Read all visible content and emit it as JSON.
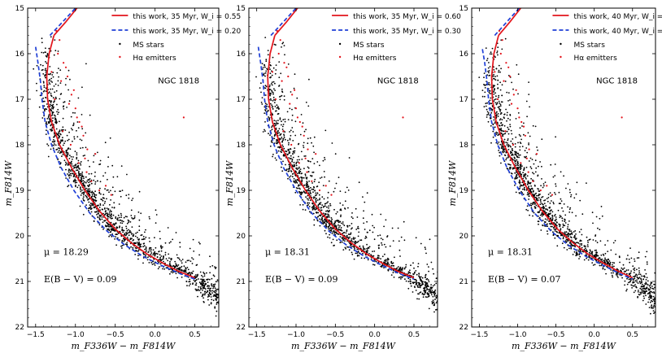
{
  "chart_data": [
    {
      "type": "scatter",
      "panel": "left",
      "cluster": "NGC 1818",
      "xlabel": "m_F336W − m_F814W",
      "ylabel": "m_F814W",
      "xlim": [
        -1.6,
        0.8
      ],
      "ylim": [
        22,
        15
      ],
      "xticks": [
        -1.5,
        -1.0,
        -0.5,
        0.0,
        0.5
      ],
      "xtick_labels": [
        "−1.5",
        "−1.0",
        "−0.5",
        "0.0",
        "0.5"
      ],
      "yticks": [
        15,
        16,
        17,
        18,
        19,
        20,
        21,
        22
      ],
      "ytick_labels": [
        "15",
        "16",
        "17",
        "18",
        "19",
        "20",
        "21",
        "22"
      ],
      "legend_position": "top-right",
      "legend": [
        {
          "label": "this work, 35 Myr, W_i = 0.55",
          "color": "#e3141b",
          "style": "solid"
        },
        {
          "label": "this work, 35 Myr, W_i = 0.20",
          "color": "#1f3fd6",
          "style": "dashed"
        },
        {
          "label": "MS stars",
          "color": "#000000",
          "style": "dot"
        },
        {
          "label": "Hα emitters",
          "color": "#e3141b",
          "style": "dot"
        }
      ],
      "annotations": {
        "cluster_label": "NGC 1818",
        "mu": "μ = 18.29",
        "ebv": "E(B − V) = 0.09"
      },
      "series": [
        {
          "name": "this work, 35 Myr, W_i = 0.55",
          "type": "line",
          "color": "#e3141b",
          "x": [
            -1.27,
            -1.33,
            -1.36,
            -1.35,
            -1.3,
            -1.2,
            -1.05,
            -0.88,
            -0.7,
            -0.5,
            -0.3,
            -0.1,
            0.1,
            0.3,
            0.5
          ],
          "y": [
            15.6,
            16.0,
            16.5,
            17.0,
            17.5,
            18.0,
            18.5,
            19.0,
            19.45,
            19.85,
            20.15,
            20.4,
            20.6,
            20.78,
            20.92
          ]
        },
        {
          "name": "this work, 35 Myr, W_i = 0.20",
          "type": "line",
          "color": "#1f3fd6",
          "x": [
            -1.5,
            -1.47,
            -1.44,
            -1.42,
            -1.38,
            -1.3,
            -1.18,
            -1.02,
            -0.82,
            -0.6,
            -0.38,
            -0.15,
            0.08,
            0.3,
            0.5
          ],
          "y": [
            15.85,
            16.2,
            16.6,
            17.0,
            17.5,
            18.0,
            18.5,
            19.0,
            19.5,
            19.9,
            20.2,
            20.45,
            20.65,
            20.82,
            20.95
          ]
        },
        {
          "name": "this work, 35 Myr, W_i = 0.55 (bright extension)",
          "type": "line",
          "color": "#e3141b",
          "x": [
            -1.27,
            -1.12,
            -0.98
          ],
          "y": [
            15.6,
            15.3,
            15.0
          ]
        },
        {
          "name": "this work, 35 Myr, W_i = 0.20 (bright extension)",
          "type": "line",
          "color": "#1f3fd6",
          "x": [
            -1.32,
            -1.16,
            -1.0
          ],
          "y": [
            15.6,
            15.3,
            15.0
          ]
        },
        {
          "name": "Hα emitters",
          "type": "scatter",
          "color": "#e3141b",
          "x": [
            -1.24,
            -1.2,
            -1.15,
            -1.1,
            -1.05,
            -1.0,
            -0.95,
            -0.9,
            -0.85,
            -1.22,
            -1.18,
            -1.12,
            -1.08,
            -1.02,
            -0.98,
            -0.92,
            -0.88,
            -1.3,
            -1.26,
            -1.16,
            -1.06,
            -0.96,
            -0.86,
            -0.8,
            -0.75,
            -0.7,
            -0.62,
            -0.55,
            0.36
          ],
          "y": [
            15.5,
            15.7,
            16.2,
            16.5,
            16.9,
            17.2,
            17.5,
            17.8,
            18.1,
            16.0,
            16.6,
            16.3,
            17.1,
            16.8,
            17.4,
            17.6,
            18.3,
            16.4,
            17.0,
            17.7,
            18.0,
            18.4,
            18.6,
            18.8,
            18.2,
            19.0,
            18.9,
            19.1,
            17.4
          ]
        },
        {
          "name": "MS stars",
          "type": "scatter",
          "color": "#000000",
          "note": "dense main-sequence cloud (~2000 stars) following the isochrones; generated procedurally in the rendering script around the red isochrone",
          "x": [],
          "y": []
        }
      ]
    },
    {
      "type": "scatter",
      "panel": "middle",
      "cluster": "NGC 1818",
      "xlabel": "m_F336W − m_F814W",
      "ylabel": "m_F814W",
      "xlim": [
        -1.6,
        0.8
      ],
      "ylim": [
        22,
        15
      ],
      "xticks": [
        -1.5,
        -1.0,
        -0.5,
        0.0,
        0.5
      ],
      "xtick_labels": [
        "−1.5",
        "−1.0",
        "−0.5",
        "0.0",
        "0.5"
      ],
      "yticks": [
        15,
        16,
        17,
        18,
        19,
        20,
        21,
        22
      ],
      "ytick_labels": [
        "15",
        "16",
        "17",
        "18",
        "19",
        "20",
        "21",
        "22"
      ],
      "legend_position": "top-right",
      "legend": [
        {
          "label": "this work, 35 Myr, W_i = 0.60",
          "color": "#e3141b",
          "style": "solid"
        },
        {
          "label": "this work, 35 Myr, W_i = 0.30",
          "color": "#1f3fd6",
          "style": "dashed"
        },
        {
          "label": "MS stars",
          "color": "#000000",
          "style": "dot"
        },
        {
          "label": "Hα emitters",
          "color": "#e3141b",
          "style": "dot"
        }
      ],
      "annotations": {
        "cluster_label": "NGC 1818",
        "mu": "μ = 18.31",
        "ebv": "E(B − V) = 0.09"
      },
      "series": [
        {
          "name": "this work, 35 Myr, W_i = 0.60",
          "type": "line",
          "color": "#e3141b",
          "x": [
            -1.27,
            -1.33,
            -1.36,
            -1.35,
            -1.3,
            -1.2,
            -1.05,
            -0.88,
            -0.7,
            -0.5,
            -0.3,
            -0.1,
            0.1,
            0.3,
            0.5
          ],
          "y": [
            15.6,
            16.0,
            16.5,
            17.0,
            17.5,
            18.0,
            18.5,
            19.0,
            19.45,
            19.85,
            20.15,
            20.4,
            20.6,
            20.78,
            20.92
          ]
        },
        {
          "name": "this work, 35 Myr, W_i = 0.30",
          "type": "line",
          "color": "#1f3fd6",
          "x": [
            -1.48,
            -1.45,
            -1.42,
            -1.4,
            -1.36,
            -1.28,
            -1.16,
            -1.0,
            -0.8,
            -0.58,
            -0.36,
            -0.13,
            0.1,
            0.3,
            0.5
          ],
          "y": [
            15.85,
            16.2,
            16.6,
            17.0,
            17.5,
            18.0,
            18.5,
            19.0,
            19.5,
            19.9,
            20.2,
            20.45,
            20.65,
            20.82,
            20.95
          ]
        },
        {
          "name": "this work, 35 Myr, W_i = 0.60 (bright extension)",
          "type": "line",
          "color": "#e3141b",
          "x": [
            -1.27,
            -1.12,
            -0.98
          ],
          "y": [
            15.6,
            15.3,
            15.0
          ]
        },
        {
          "name": "this work, 35 Myr, W_i = 0.30 (bright extension)",
          "type": "line",
          "color": "#1f3fd6",
          "x": [
            -1.32,
            -1.16,
            -1.0
          ],
          "y": [
            15.6,
            15.3,
            15.0
          ]
        },
        {
          "name": "Hα emitters",
          "type": "scatter",
          "color": "#e3141b",
          "x": [
            -1.24,
            -1.2,
            -1.15,
            -1.1,
            -1.05,
            -1.0,
            -0.95,
            -0.9,
            -0.85,
            -1.22,
            -1.18,
            -1.12,
            -1.08,
            -1.02,
            -0.98,
            -0.92,
            -0.88,
            -1.3,
            -1.26,
            -1.16,
            -1.06,
            -0.96,
            -0.86,
            -0.8,
            -0.75,
            -0.7,
            -0.62,
            -0.55,
            0.36
          ],
          "y": [
            15.5,
            15.7,
            16.2,
            16.5,
            16.9,
            17.2,
            17.5,
            17.8,
            18.1,
            16.0,
            16.6,
            16.3,
            17.1,
            16.8,
            17.4,
            17.6,
            18.3,
            16.4,
            17.0,
            17.7,
            18.0,
            18.4,
            18.6,
            18.8,
            18.2,
            19.0,
            18.9,
            19.1,
            17.4
          ]
        },
        {
          "name": "MS stars",
          "type": "scatter",
          "color": "#000000",
          "note": "dense main-sequence cloud (~2000 stars) following the isochrones; generated procedurally in the rendering script around the red isochrone",
          "x": [],
          "y": []
        }
      ]
    },
    {
      "type": "scatter",
      "panel": "right",
      "cluster": "NGC 1818",
      "xlabel": "m_F336W − m_F814W",
      "ylabel": "m_F814W",
      "xlim": [
        -1.6,
        0.8
      ],
      "ylim": [
        22,
        15
      ],
      "xticks": [
        -1.5,
        -1.0,
        -0.5,
        0.0,
        0.5
      ],
      "xtick_labels": [
        "−1.5",
        "−1.0",
        "−0.5",
        "0.0",
        "0.5"
      ],
      "yticks": [
        15,
        16,
        17,
        18,
        19,
        20,
        21,
        22
      ],
      "ytick_labels": [
        "15",
        "16",
        "17",
        "18",
        "19",
        "20",
        "21",
        "22"
      ],
      "legend_position": "top-right",
      "legend": [
        {
          "label": "this work, 40 Myr, W_i = 0.65",
          "color": "#e3141b",
          "style": "solid"
        },
        {
          "label": "this work, 40 Myr, W_i = 0.35",
          "color": "#1f3fd6",
          "style": "dashed"
        },
        {
          "label": "MS stars",
          "color": "#000000",
          "style": "dot"
        },
        {
          "label": "Hα emitters",
          "color": "#e3141b",
          "style": "dot"
        }
      ],
      "annotations": {
        "cluster_label": "NGC 1818",
        "mu": "μ = 18.31",
        "ebv": "E(B − V) = 0.07"
      },
      "series": [
        {
          "name": "this work, 40 Myr, W_i = 0.65",
          "type": "line",
          "color": "#e3141b",
          "x": [
            -1.25,
            -1.31,
            -1.34,
            -1.33,
            -1.28,
            -1.18,
            -1.03,
            -0.86,
            -0.68,
            -0.48,
            -0.28,
            -0.08,
            0.12,
            0.32,
            0.5
          ],
          "y": [
            15.6,
            16.0,
            16.5,
            17.0,
            17.5,
            18.0,
            18.5,
            19.0,
            19.45,
            19.85,
            20.15,
            20.4,
            20.6,
            20.78,
            20.92
          ]
        },
        {
          "name": "this work, 40 Myr, W_i = 0.35",
          "type": "line",
          "color": "#1f3fd6",
          "x": [
            -1.46,
            -1.43,
            -1.4,
            -1.38,
            -1.34,
            -1.26,
            -1.14,
            -0.98,
            -0.78,
            -0.56,
            -0.34,
            -0.11,
            0.12,
            0.32,
            0.5
          ],
          "y": [
            15.9,
            16.2,
            16.6,
            17.0,
            17.5,
            18.0,
            18.5,
            19.0,
            19.5,
            19.9,
            20.2,
            20.45,
            20.65,
            20.82,
            20.95
          ]
        },
        {
          "name": "this work, 40 Myr, W_i = 0.65 (bright extension)",
          "type": "line",
          "color": "#e3141b",
          "x": [
            -1.25,
            -1.1,
            -0.96
          ],
          "y": [
            15.6,
            15.3,
            15.0
          ]
        },
        {
          "name": "this work, 40 Myr, W_i = 0.35 (bright extension)",
          "type": "line",
          "color": "#1f3fd6",
          "x": [
            -1.3,
            -1.14,
            -0.98
          ],
          "y": [
            15.6,
            15.3,
            15.0
          ]
        },
        {
          "name": "Hα emitters",
          "type": "scatter",
          "color": "#e3141b",
          "x": [
            -1.24,
            -1.2,
            -1.15,
            -1.1,
            -1.05,
            -1.0,
            -0.95,
            -0.9,
            -0.85,
            -1.22,
            -1.18,
            -1.12,
            -1.08,
            -1.02,
            -0.98,
            -0.92,
            -0.88,
            -1.3,
            -1.26,
            -1.16,
            -1.06,
            -0.96,
            -0.86,
            -0.8,
            -0.75,
            -0.7,
            -0.62,
            -0.55,
            0.36
          ],
          "y": [
            15.5,
            15.7,
            16.2,
            16.5,
            16.9,
            17.2,
            17.5,
            17.8,
            18.1,
            16.0,
            16.6,
            16.3,
            17.1,
            16.8,
            17.4,
            17.6,
            18.3,
            16.4,
            17.0,
            17.7,
            18.0,
            18.4,
            18.6,
            18.8,
            18.2,
            19.0,
            18.9,
            19.1,
            17.4
          ]
        },
        {
          "name": "MS stars",
          "type": "scatter",
          "color": "#000000",
          "note": "dense main-sequence cloud (~2000 stars) following the isochrones; generated procedurally in the rendering script around the red isochrone",
          "x": [],
          "y": []
        }
      ]
    }
  ]
}
